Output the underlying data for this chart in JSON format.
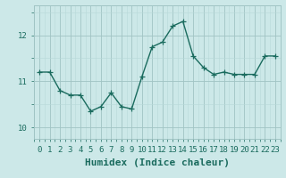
{
  "x": [
    0,
    1,
    2,
    3,
    4,
    5,
    6,
    7,
    8,
    9,
    10,
    11,
    12,
    13,
    14,
    15,
    16,
    17,
    18,
    19,
    20,
    21,
    22,
    23
  ],
  "y": [
    11.2,
    11.2,
    10.8,
    10.7,
    10.7,
    10.35,
    10.45,
    10.75,
    10.45,
    10.4,
    11.1,
    11.75,
    11.85,
    12.2,
    12.3,
    11.55,
    11.3,
    11.15,
    11.2,
    11.15,
    11.15,
    11.15,
    11.55,
    11.55
  ],
  "line_color": "#1a6b5e",
  "marker": "+",
  "marker_size": 4,
  "bg_color": "#cce8e8",
  "grid_color_major": "#a0c4c4",
  "grid_color_minor": "#b8d8d8",
  "xlabel": "Humidex (Indice chaleur)",
  "xlabel_fontsize": 8,
  "yticks": [
    10,
    11,
    12
  ],
  "xticks": [
    0,
    1,
    2,
    3,
    4,
    5,
    6,
    7,
    8,
    9,
    10,
    11,
    12,
    13,
    14,
    15,
    16,
    17,
    18,
    19,
    20,
    21,
    22,
    23
  ],
  "ylim": [
    9.75,
    12.65
  ],
  "xlim": [
    -0.5,
    23.5
  ],
  "tick_fontsize": 6.5,
  "line_width": 1.0
}
